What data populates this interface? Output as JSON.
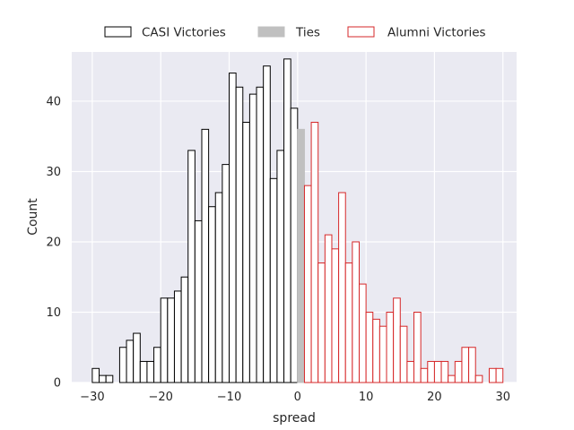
{
  "chart_data": {
    "type": "bar",
    "title": "",
    "xlabel": "spread",
    "ylabel": "Count",
    "xlim": [
      -33,
      32
    ],
    "ylim": [
      0,
      47
    ],
    "xticks": [
      -30,
      -20,
      -10,
      0,
      10,
      20,
      30
    ],
    "yticks": [
      0,
      10,
      20,
      30,
      40
    ],
    "grid": true,
    "legend_position": "top",
    "bin_width": 1,
    "series": [
      {
        "name": "CASI Victories",
        "edge_color": "#000000",
        "fill_color": "#ffffff",
        "bins": [
          {
            "x": -30,
            "count": 2
          },
          {
            "x": -29,
            "count": 1
          },
          {
            "x": -28,
            "count": 1
          },
          {
            "x": -27,
            "count": 0
          },
          {
            "x": -26,
            "count": 5
          },
          {
            "x": -25,
            "count": 6
          },
          {
            "x": -24,
            "count": 7
          },
          {
            "x": -23,
            "count": 3
          },
          {
            "x": -22,
            "count": 3
          },
          {
            "x": -21,
            "count": 5
          },
          {
            "x": -20,
            "count": 12
          },
          {
            "x": -19,
            "count": 12
          },
          {
            "x": -18,
            "count": 13
          },
          {
            "x": -17,
            "count": 15
          },
          {
            "x": -16,
            "count": 33
          },
          {
            "x": -15,
            "count": 23
          },
          {
            "x": -14,
            "count": 36
          },
          {
            "x": -13,
            "count": 25
          },
          {
            "x": -12,
            "count": 27
          },
          {
            "x": -11,
            "count": 31
          },
          {
            "x": -10,
            "count": 44
          },
          {
            "x": -9,
            "count": 42
          },
          {
            "x": -8,
            "count": 37
          },
          {
            "x": -7,
            "count": 41
          },
          {
            "x": -6,
            "count": 42
          },
          {
            "x": -5,
            "count": 45
          },
          {
            "x": -4,
            "count": 29
          },
          {
            "x": -3,
            "count": 33
          },
          {
            "x": -2,
            "count": 46
          },
          {
            "x": -1,
            "count": 39
          }
        ]
      },
      {
        "name": "Ties",
        "edge_color": "#c0c0c0",
        "fill_color": "#c0c0c0",
        "bins": [
          {
            "x": 0,
            "count": 36
          }
        ]
      },
      {
        "name": "Alumni Victories",
        "edge_color": "#d62728",
        "fill_color": "#ffffff",
        "bins": [
          {
            "x": 1,
            "count": 28
          },
          {
            "x": 2,
            "count": 37
          },
          {
            "x": 3,
            "count": 17
          },
          {
            "x": 4,
            "count": 21
          },
          {
            "x": 5,
            "count": 19
          },
          {
            "x": 6,
            "count": 27
          },
          {
            "x": 7,
            "count": 17
          },
          {
            "x": 8,
            "count": 20
          },
          {
            "x": 9,
            "count": 14
          },
          {
            "x": 10,
            "count": 10
          },
          {
            "x": 11,
            "count": 9
          },
          {
            "x": 12,
            "count": 8
          },
          {
            "x": 13,
            "count": 10
          },
          {
            "x": 14,
            "count": 12
          },
          {
            "x": 15,
            "count": 8
          },
          {
            "x": 16,
            "count": 3
          },
          {
            "x": 17,
            "count": 10
          },
          {
            "x": 18,
            "count": 2
          },
          {
            "x": 19,
            "count": 3
          },
          {
            "x": 20,
            "count": 3
          },
          {
            "x": 21,
            "count": 3
          },
          {
            "x": 22,
            "count": 1
          },
          {
            "x": 23,
            "count": 3
          },
          {
            "x": 24,
            "count": 5
          },
          {
            "x": 25,
            "count": 5
          },
          {
            "x": 26,
            "count": 1
          },
          {
            "x": 27,
            "count": 0
          },
          {
            "x": 28,
            "count": 2
          },
          {
            "x": 29,
            "count": 2
          }
        ]
      }
    ]
  },
  "colors": {
    "plot_background": "#eaeaf2",
    "grid": "#ffffff",
    "text": "#262626"
  }
}
